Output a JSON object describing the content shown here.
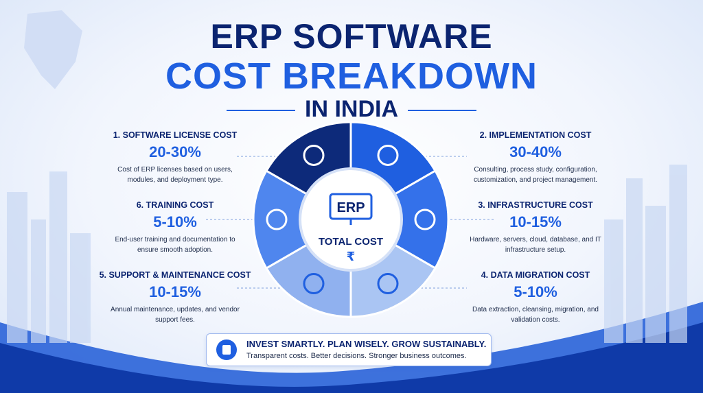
{
  "title": {
    "line1": "ERP SOFTWARE",
    "line2": "COST BREAKDOWN",
    "line3": "IN INDIA"
  },
  "center": {
    "logo": "ERP",
    "label": "TOTAL COST",
    "symbol": "₹"
  },
  "items": [
    {
      "heading": "1. SOFTWARE LICENSE COST",
      "range": "20-30%",
      "description": "Cost of ERP licenses based on users, modules, and deployment type."
    },
    {
      "heading": "2. IMPLEMENTATION COST",
      "range": "30-40%",
      "description": "Consulting, process study, configuration, customization, and project management."
    },
    {
      "heading": "3. INFRASTRUCTURE COST",
      "range": "10-15%",
      "description": "Hardware, servers, cloud, database, and IT infrastructure setup."
    },
    {
      "heading": "4. DATA MIGRATION COST",
      "range": "5-10%",
      "description": "Data extraction, cleansing, migration, and validation costs."
    },
    {
      "heading": "5. SUPPORT & MAINTENANCE COST",
      "range": "10-15%",
      "description": "Annual maintenance, updates, and vendor support fees."
    },
    {
      "heading": "6. TRAINING COST",
      "range": "5-10%",
      "description": "End-user training and documentation to ensure smooth adoption."
    }
  ],
  "footer": {
    "headline": "INVEST SMARTLY. PLAN WISELY. GROW SUSTAINABLY.",
    "tagline": "Transparent costs. Better decisions. Stronger business outcomes."
  }
}
